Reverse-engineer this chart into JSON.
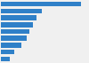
{
  "values": [
    83,
    42,
    37,
    33,
    29,
    27,
    21,
    14,
    9
  ],
  "bar_color": "#2f80c8",
  "background_color": "#f0f0f0",
  "plot_bg_color": "#f0f0f0",
  "grid_color": "#ffffff",
  "xlim": [
    0,
    90
  ]
}
